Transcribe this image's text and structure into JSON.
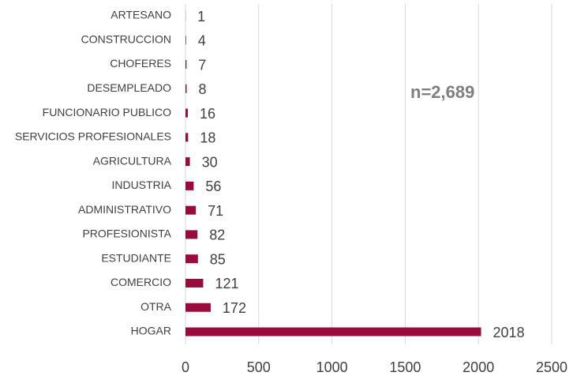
{
  "chart_data": {
    "type": "bar",
    "orientation": "horizontal",
    "annotation": "n=2,689",
    "categories": [
      "ARTESANO",
      "CONSTRUCCION",
      "CHOFERES",
      "DESEMPLEADO",
      "FUNCIONARIO PUBLICO",
      "SERVICIOS PROFESIONALES",
      "AGRICULTURA",
      "INDUSTRIA",
      "ADMINISTRATIVO",
      "PROFESIONISTA",
      "ESTUDIANTE",
      "COMERCIO",
      "OTRA",
      "HOGAR"
    ],
    "values": [
      1,
      4,
      7,
      8,
      16,
      18,
      30,
      56,
      71,
      82,
      85,
      121,
      172,
      2018
    ],
    "color": "#9b0a3c",
    "xlim": [
      0,
      2500
    ],
    "xticks": [
      0,
      500,
      1000,
      1500,
      2000,
      2500
    ],
    "grid": true
  }
}
